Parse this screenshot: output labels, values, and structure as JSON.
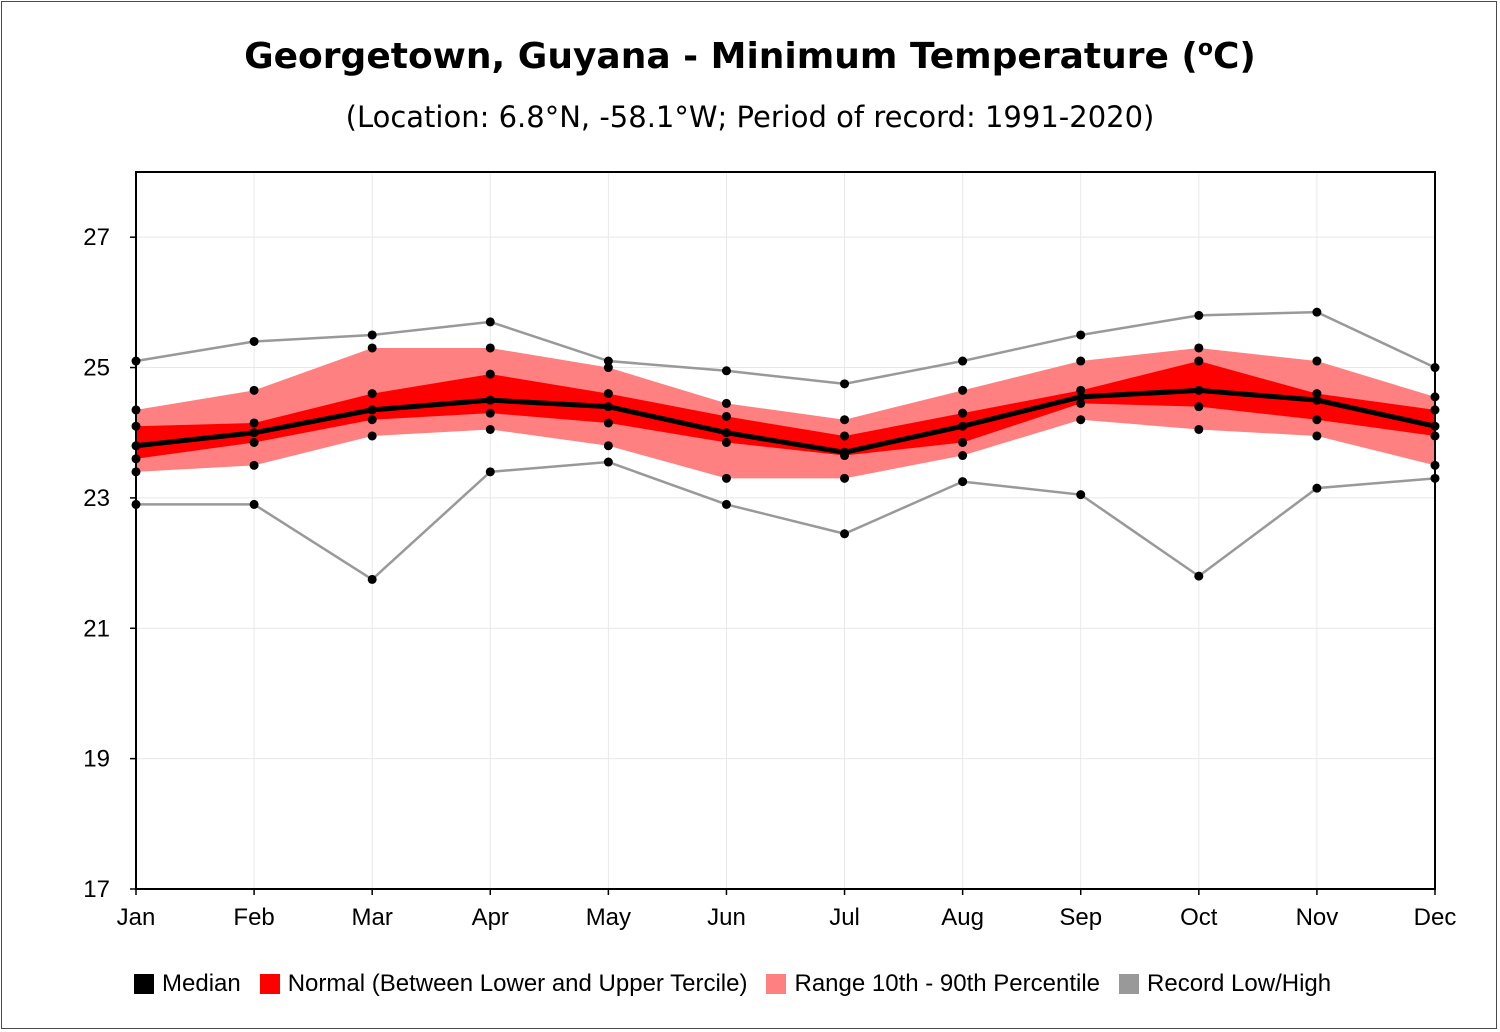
{
  "chart_data": {
    "type": "area",
    "title": "Georgetown, Guyana - Minimum Temperature (",
    "title_sup": "o",
    "title_end": "C)",
    "subtitle": "(Location: 6.8°N, -58.1°W; Period of record: 1991-2020)",
    "categories": [
      "Jan",
      "Feb",
      "Mar",
      "Apr",
      "May",
      "Jun",
      "Jul",
      "Aug",
      "Sep",
      "Oct",
      "Nov",
      "Dec"
    ],
    "ylim": [
      17,
      28
    ],
    "yticks": [
      17,
      19,
      21,
      23,
      25,
      27
    ],
    "grid": true,
    "legend_position": "bottom",
    "series": [
      {
        "name": "Median",
        "color": "#000000",
        "values": [
          23.8,
          24.0,
          24.35,
          24.5,
          24.4,
          24.0,
          23.7,
          24.1,
          24.55,
          24.65,
          24.5,
          24.1
        ]
      },
      {
        "name": "Normal (Between Lower and Upper Tercile)",
        "color": "#ff0000",
        "lower": [
          23.6,
          23.85,
          24.2,
          24.3,
          24.15,
          23.85,
          23.65,
          23.85,
          24.45,
          24.4,
          24.2,
          23.95
        ],
        "upper": [
          24.1,
          24.15,
          24.6,
          24.9,
          24.6,
          24.25,
          23.95,
          24.3,
          24.65,
          25.1,
          24.6,
          24.35
        ]
      },
      {
        "name": "Range 10th - 90th Percentile",
        "color": "#ff8080",
        "lower": [
          23.4,
          23.5,
          23.95,
          24.05,
          23.8,
          23.3,
          23.3,
          23.65,
          24.2,
          24.05,
          23.95,
          23.5
        ],
        "upper": [
          24.35,
          24.65,
          25.3,
          25.3,
          25.0,
          24.45,
          24.2,
          24.65,
          25.1,
          25.3,
          25.1,
          24.55
        ]
      },
      {
        "name": "Record Low/High",
        "color": "#999999",
        "lower": [
          22.9,
          22.9,
          21.75,
          23.4,
          23.55,
          22.9,
          22.45,
          23.25,
          23.05,
          21.8,
          23.15,
          23.3
        ],
        "upper": [
          25.1,
          25.4,
          25.5,
          25.7,
          25.1,
          24.95,
          24.75,
          25.1,
          25.5,
          25.8,
          25.85,
          25.0
        ]
      }
    ]
  }
}
